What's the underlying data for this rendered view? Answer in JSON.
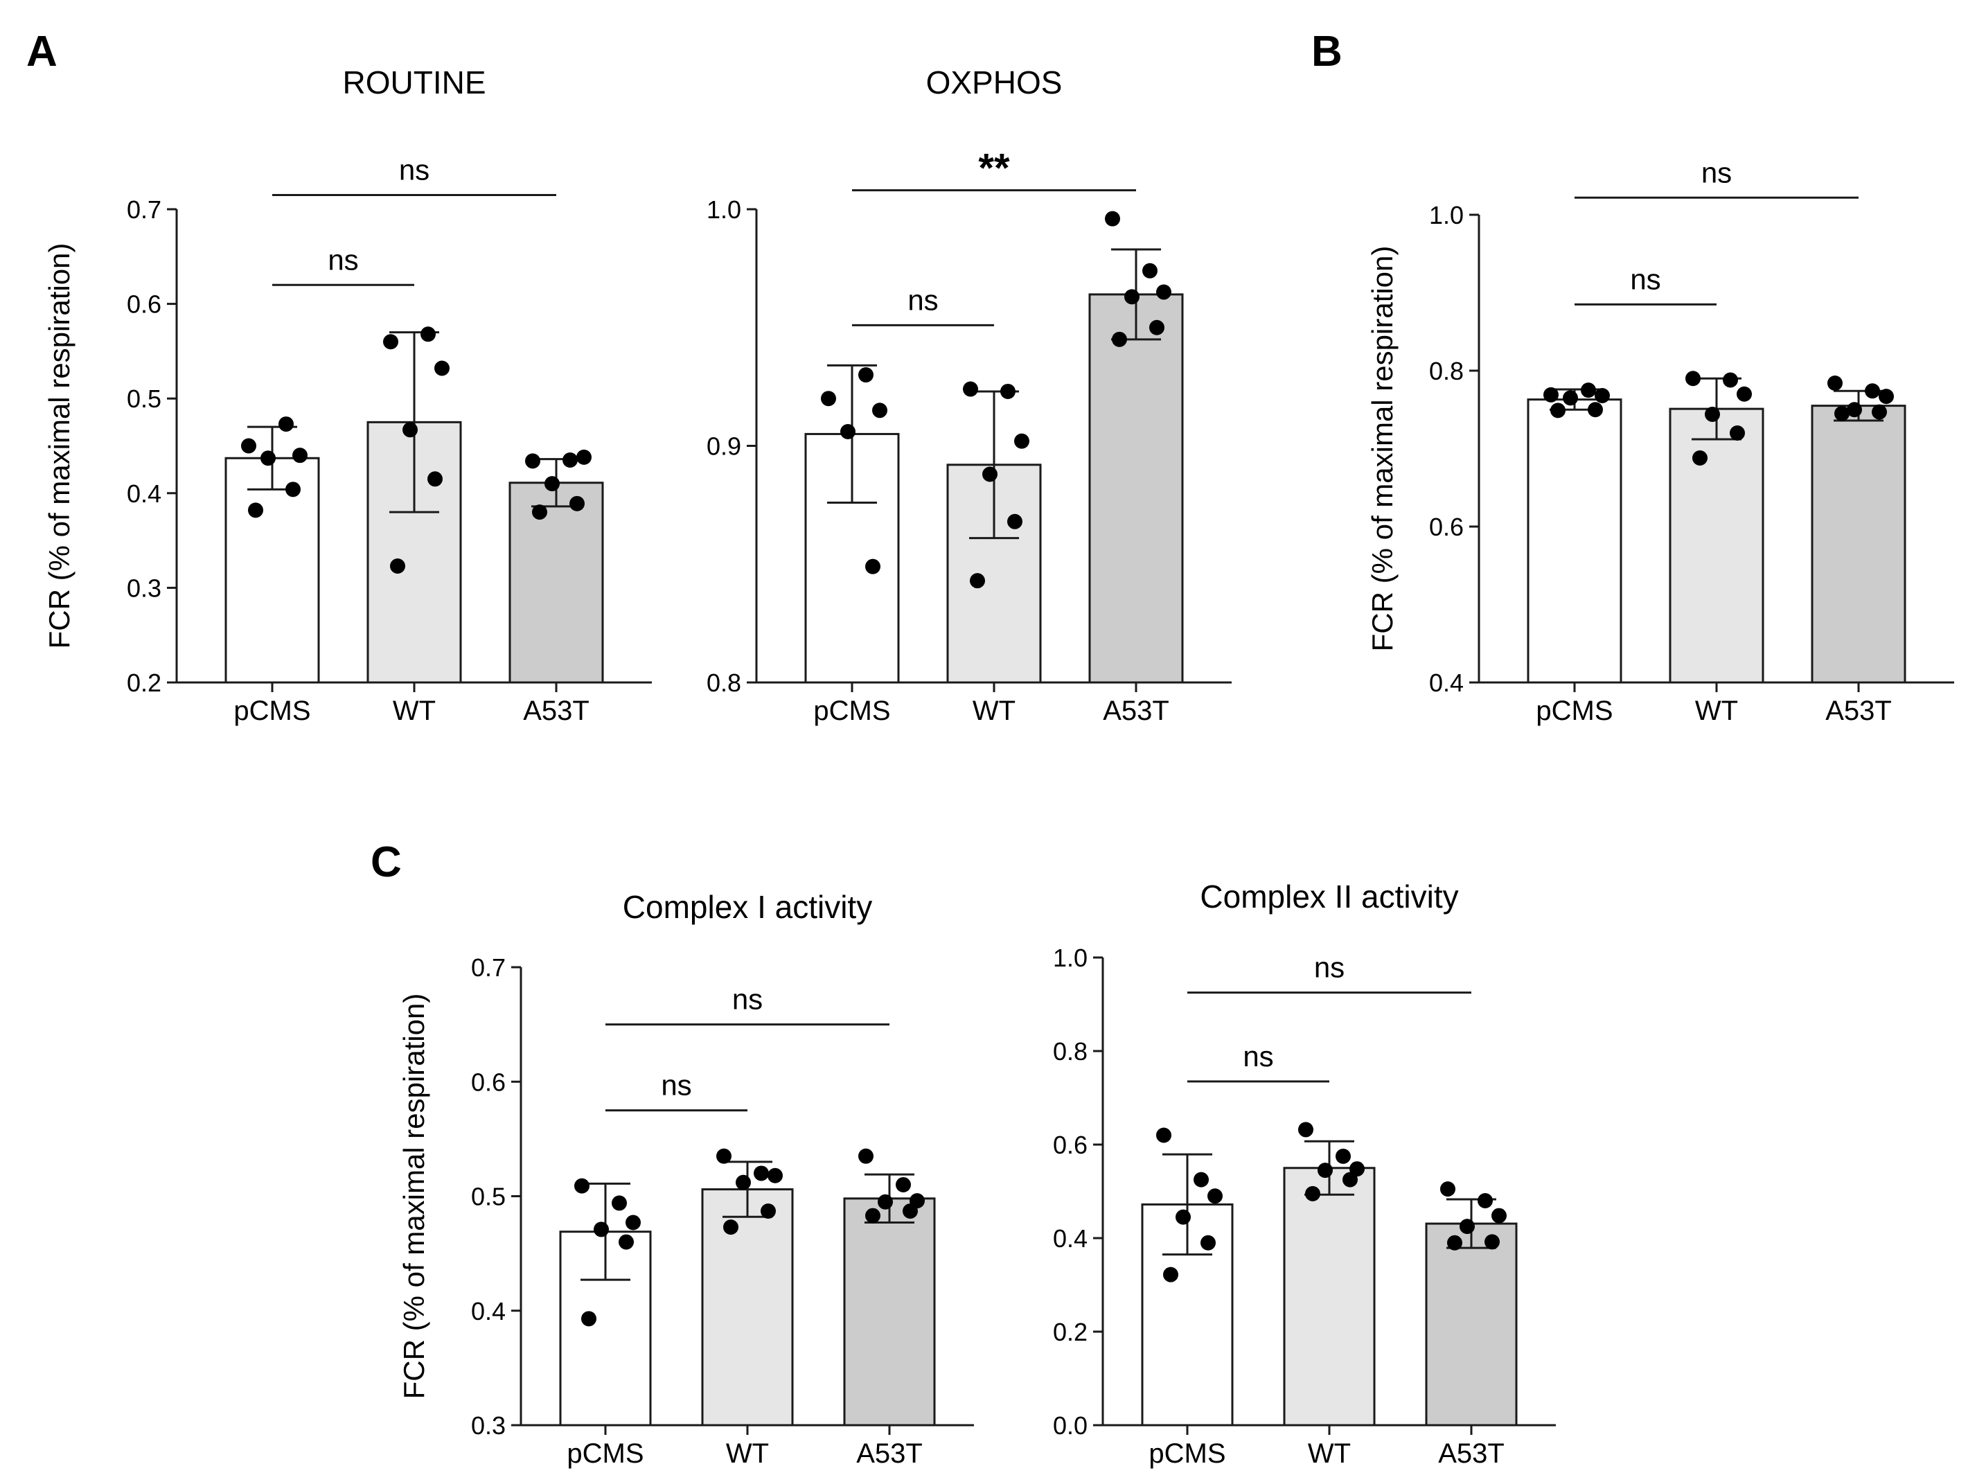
{
  "panel_labels": [
    "A",
    "B",
    "C"
  ],
  "chart_data": [
    {
      "id": "routine",
      "type": "bar",
      "panel": "A",
      "title": "ROUTINE",
      "ylabel": "FCR (% of maximal respiration)",
      "xlabel": "",
      "ylim": [
        0.2,
        0.7
      ],
      "yticks": [
        0.2,
        0.3,
        0.4,
        0.5,
        0.6,
        0.7
      ],
      "ytick_labels": [
        "0.2",
        "0.3",
        "0.4",
        "0.5",
        "0.6",
        "0.7"
      ],
      "categories": [
        "pCMS",
        "WT",
        "A53T"
      ],
      "values": [
        0.437,
        0.475,
        0.411
      ],
      "error": [
        0.033,
        0.095,
        0.025
      ],
      "bar_colors": [
        "#ffffff",
        "#e6e6e6",
        "#cccccc"
      ],
      "points": [
        [
          0.45,
          0.473,
          0.44,
          0.437,
          0.404,
          0.382
        ],
        [
          0.56,
          0.568,
          0.532,
          0.467,
          0.415,
          0.323
        ],
        [
          0.434,
          0.435,
          0.438,
          0.41,
          0.389,
          0.38
        ]
      ],
      "comparisons": [
        {
          "from": 0,
          "to": 1,
          "label": "ns",
          "y": 0.62
        },
        {
          "from": 0,
          "to": 2,
          "label": "ns",
          "y": 0.715
        }
      ]
    },
    {
      "id": "oxphos",
      "type": "bar",
      "panel": "A",
      "title": "OXPHOS",
      "ylabel": "",
      "xlabel": "",
      "ylim": [
        0.8,
        1.0
      ],
      "yticks": [
        0.8,
        0.9,
        1.0
      ],
      "ytick_labels": [
        "0.8",
        "0.9",
        "1.0"
      ],
      "categories": [
        "pCMS",
        "WT",
        "A53T"
      ],
      "values": [
        0.905,
        0.892,
        0.964
      ],
      "error": [
        0.029,
        0.031,
        0.019
      ],
      "bar_colors": [
        "#ffffff",
        "#e6e6e6",
        "#cccccc"
      ],
      "points": [
        [
          0.92,
          0.93,
          0.915,
          0.906,
          0.849
        ],
        [
          0.924,
          0.923,
          0.902,
          0.888,
          0.868,
          0.843
        ],
        [
          0.996,
          0.974,
          0.965,
          0.963,
          0.95,
          0.945
        ]
      ],
      "comparisons": [
        {
          "from": 0,
          "to": 1,
          "label": "ns",
          "y": 0.951
        },
        {
          "from": 0,
          "to": 2,
          "label": "**",
          "y": 1.008
        }
      ]
    },
    {
      "id": "fcr-b",
      "type": "bar",
      "panel": "B",
      "title": "",
      "ylabel": "FCR (% of maximal respiration)",
      "xlabel": "",
      "ylim": [
        0.4,
        1.0
      ],
      "yticks": [
        0.4,
        0.6,
        0.8,
        1.0
      ],
      "ytick_labels": [
        "0.4",
        "0.6",
        "0.8",
        "1.0"
      ],
      "categories": [
        "pCMS",
        "WT",
        "A53T"
      ],
      "values": [
        0.763,
        0.751,
        0.755
      ],
      "error": [
        0.013,
        0.039,
        0.019
      ],
      "bar_colors": [
        "#ffffff",
        "#e6e6e6",
        "#cccccc"
      ],
      "points": [
        [
          0.769,
          0.775,
          0.768,
          0.765,
          0.75,
          0.749
        ],
        [
          0.79,
          0.788,
          0.77,
          0.744,
          0.72,
          0.688
        ],
        [
          0.784,
          0.774,
          0.767,
          0.75,
          0.747,
          0.745
        ]
      ],
      "comparisons": [
        {
          "from": 0,
          "to": 1,
          "label": "ns",
          "y": 0.885
        },
        {
          "from": 0,
          "to": 2,
          "label": "ns",
          "y": 1.022
        }
      ]
    },
    {
      "id": "complex1",
      "type": "bar",
      "panel": "C",
      "title": "Complex I activity",
      "ylabel": "FCR (% of maximal respiration)",
      "xlabel": "",
      "ylim": [
        0.3,
        0.7
      ],
      "yticks": [
        0.3,
        0.4,
        0.5,
        0.6,
        0.7
      ],
      "ytick_labels": [
        "0.3",
        "0.4",
        "0.5",
        "0.6",
        "0.7"
      ],
      "categories": [
        "pCMS",
        "WT",
        "A53T"
      ],
      "values": [
        0.469,
        0.506,
        0.498
      ],
      "error": [
        0.042,
        0.024,
        0.021
      ],
      "bar_colors": [
        "#ffffff",
        "#e6e6e6",
        "#cccccc"
      ],
      "points": [
        [
          0.509,
          0.494,
          0.477,
          0.471,
          0.46,
          0.393
        ],
        [
          0.535,
          0.52,
          0.518,
          0.512,
          0.487,
          0.473
        ],
        [
          0.535,
          0.51,
          0.496,
          0.495,
          0.487,
          0.483
        ]
      ],
      "comparisons": [
        {
          "from": 0,
          "to": 1,
          "label": "ns",
          "y": 0.575
        },
        {
          "from": 0,
          "to": 2,
          "label": "ns",
          "y": 0.65
        }
      ]
    },
    {
      "id": "complex2",
      "type": "bar",
      "panel": "C",
      "title": "Complex II activity",
      "ylabel": "",
      "xlabel": "",
      "ylim": [
        0.0,
        1.0
      ],
      "yticks": [
        0.0,
        0.2,
        0.4,
        0.6,
        0.8,
        1.0
      ],
      "ytick_labels": [
        "0.0",
        "0.2",
        "0.4",
        "0.6",
        "0.8",
        "1.0"
      ],
      "categories": [
        "pCMS",
        "WT",
        "A53T"
      ],
      "values": [
        0.472,
        0.55,
        0.431
      ],
      "error": [
        0.107,
        0.057,
        0.052
      ],
      "bar_colors": [
        "#ffffff",
        "#e6e6e6",
        "#cccccc"
      ],
      "points": [
        [
          0.62,
          0.525,
          0.49,
          0.445,
          0.39,
          0.322
        ],
        [
          0.632,
          0.575,
          0.548,
          0.545,
          0.525,
          0.495
        ],
        [
          0.505,
          0.48,
          0.448,
          0.425,
          0.392,
          0.39
        ]
      ],
      "comparisons": [
        {
          "from": 0,
          "to": 1,
          "label": "ns",
          "y": 0.735
        },
        {
          "from": 0,
          "to": 2,
          "label": "ns",
          "y": 0.925
        }
      ]
    }
  ]
}
